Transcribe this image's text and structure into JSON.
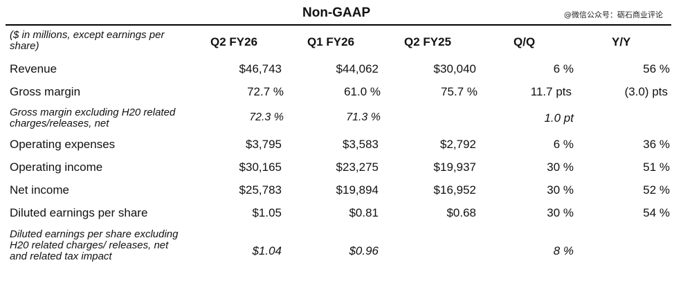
{
  "title": "Non-GAAP",
  "watermark": "@微信公众号：砺石商业评论",
  "header_note": "($ in millions, except earnings per share)",
  "columns": [
    "Q2 FY26",
    "Q1 FY26",
    "Q2 FY25",
    "Q/Q",
    "Y/Y"
  ],
  "rows": [
    {
      "label": "Revenue",
      "q2fy26": "$46,743",
      "q1fy26": "$44,062",
      "q2fy25": "$30,040",
      "qq": "6 %",
      "yy": "56 %"
    },
    {
      "label": "Gross margin",
      "q2fy26": "72.7 %",
      "q1fy26": "61.0 %",
      "q2fy25": "75.7 %",
      "qq": "11.7 pts",
      "yy": "(3.0) pts"
    },
    {
      "label": "Gross margin excluding H20 related charges/releases, net",
      "q2fy26": "72.3 %",
      "q1fy26": "71.3 %",
      "q2fy25": "",
      "qq": "1.0 pt",
      "yy": ""
    },
    {
      "label": "Operating expenses",
      "q2fy26": "$3,795",
      "q1fy26": "$3,583",
      "q2fy25": "$2,792",
      "qq": "6 %",
      "yy": "36 %"
    },
    {
      "label": "Operating income",
      "q2fy26": "$30,165",
      "q1fy26": "$23,275",
      "q2fy25": "$19,937",
      "qq": "30 %",
      "yy": "51 %"
    },
    {
      "label": "Net income",
      "q2fy26": "$25,783",
      "q1fy26": "$19,894",
      "q2fy25": "$16,952",
      "qq": "30 %",
      "yy": "52 %"
    },
    {
      "label": "Diluted earnings per share",
      "q2fy26": "$1.05",
      "q1fy26": "$0.81",
      "q2fy25": "$0.68",
      "qq": "30 %",
      "yy": "54 %"
    },
    {
      "label": "Diluted earnings per share excluding H20 related charges/ releases, net and related tax impact",
      "q2fy26": "$1.04",
      "q1fy26": "$0.96",
      "q2fy25": "",
      "qq": "8 %",
      "yy": ""
    }
  ]
}
